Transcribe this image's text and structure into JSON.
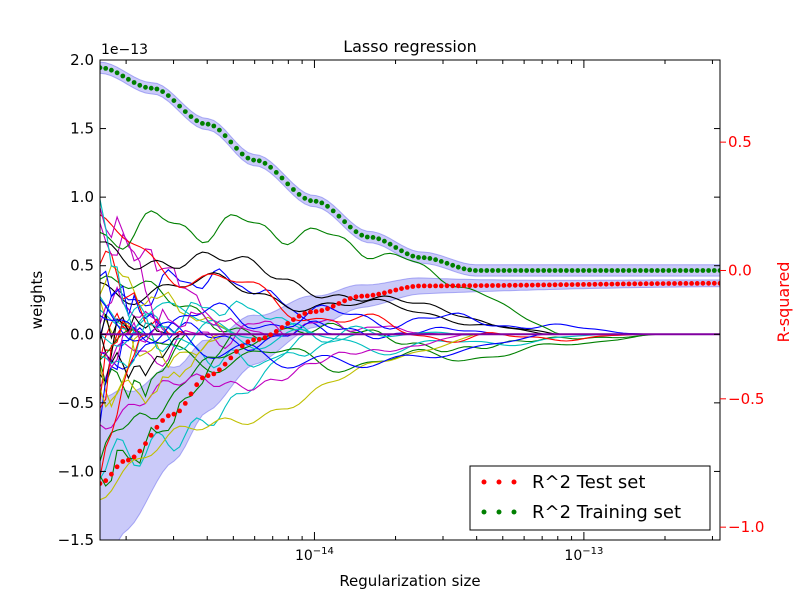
{
  "chart_data": {
    "type": "line",
    "title": "Lasso regression",
    "xlabel": "Regularization size",
    "ylabel_left": "weights",
    "ylabel_right": "R-squared",
    "left_exponent": "1e−13",
    "x_scale": "log",
    "xlim": [
      1.6e-15,
      3.2e-13
    ],
    "ylim_left": [
      -1.5,
      2.0
    ],
    "ylim_right": [
      -1.05,
      0.82
    ],
    "x_ticks": [
      {
        "value": 1e-14,
        "base": "10",
        "exp": "−14"
      },
      {
        "value": 1e-13,
        "base": "10",
        "exp": "−13"
      }
    ],
    "left_ticks": [
      {
        "value": 2.0,
        "label": "2.0"
      },
      {
        "value": 1.5,
        "label": "1.5"
      },
      {
        "value": 1.0,
        "label": "1.0"
      },
      {
        "value": 0.5,
        "label": "0.5"
      },
      {
        "value": 0.0,
        "label": "0.0"
      },
      {
        "value": -0.5,
        "label": "−0.5"
      },
      {
        "value": -1.0,
        "label": "−1.0"
      },
      {
        "value": -1.5,
        "label": "−1.5"
      }
    ],
    "right_ticks": [
      {
        "value": 0.5,
        "label": "0.5"
      },
      {
        "value": 0.0,
        "label": "0.0"
      },
      {
        "value": -0.5,
        "label": "−0.5"
      },
      {
        "value": -1.0,
        "label": "−1.0"
      }
    ],
    "legend": {
      "position": "lower-right",
      "entries": [
        {
          "label": "R^2 Test set",
          "color": "#ff0000"
        },
        {
          "label": "R^2 Training set",
          "color": "#008000"
        }
      ]
    },
    "colors": {
      "training": "#008000",
      "test": "#ff0000",
      "band": "#6666ee",
      "weight_palette": [
        "#0000ff",
        "#008000",
        "#ff0000",
        "#00bfbf",
        "#bf00bf",
        "#bfbf00",
        "#000000"
      ]
    },
    "weight_path_count": 40,
    "r2_training": [
      {
        "x": 1.6e-15,
        "y": 0.79
      },
      {
        "x": 2.5e-15,
        "y": 0.71
      },
      {
        "x": 4e-15,
        "y": 0.57
      },
      {
        "x": 6e-15,
        "y": 0.43
      },
      {
        "x": 1e-14,
        "y": 0.27
      },
      {
        "x": 1.6e-14,
        "y": 0.13
      },
      {
        "x": 2.5e-14,
        "y": 0.05
      },
      {
        "x": 4e-14,
        "y": 0.0
      },
      {
        "x": 3.2e-13,
        "y": 0.0
      }
    ],
    "r2_test": [
      {
        "x": 1.6e-15,
        "y": -0.83
      },
      {
        "x": 2e-15,
        "y": -0.74
      },
      {
        "x": 3e-15,
        "y": -0.56
      },
      {
        "x": 4e-15,
        "y": -0.41
      },
      {
        "x": 6e-15,
        "y": -0.27
      },
      {
        "x": 1e-14,
        "y": -0.16
      },
      {
        "x": 1.5e-14,
        "y": -0.1
      },
      {
        "x": 2.5e-14,
        "y": -0.06
      },
      {
        "x": 3.2e-13,
        "y": -0.05
      }
    ]
  }
}
